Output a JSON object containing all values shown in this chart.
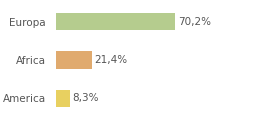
{
  "categories": [
    "Europa",
    "Africa",
    "America"
  ],
  "values": [
    70.2,
    21.4,
    8.3
  ],
  "bar_colors": [
    "#b5cc8e",
    "#e0aa6e",
    "#e8d060"
  ],
  "labels": [
    "70,2%",
    "21,4%",
    "8,3%"
  ],
  "xlim": [
    0,
    130
  ],
  "background_color": "#ffffff",
  "label_fontsize": 7.5,
  "category_fontsize": 7.5,
  "bar_height": 0.45
}
